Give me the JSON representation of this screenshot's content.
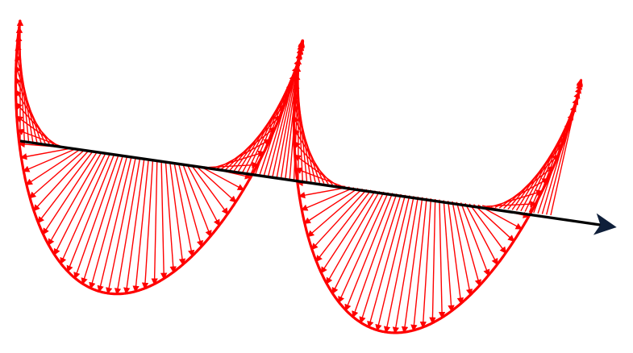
{
  "diagram": {
    "type": "circularly-polarized-wave-field-vectors",
    "labels": [],
    "colors": {
      "field": "#ff0000",
      "axis": "#000000",
      "background": "#ffffff"
    },
    "cycles": 2,
    "vectors_per_cycle": 62,
    "handedness": "right"
  }
}
